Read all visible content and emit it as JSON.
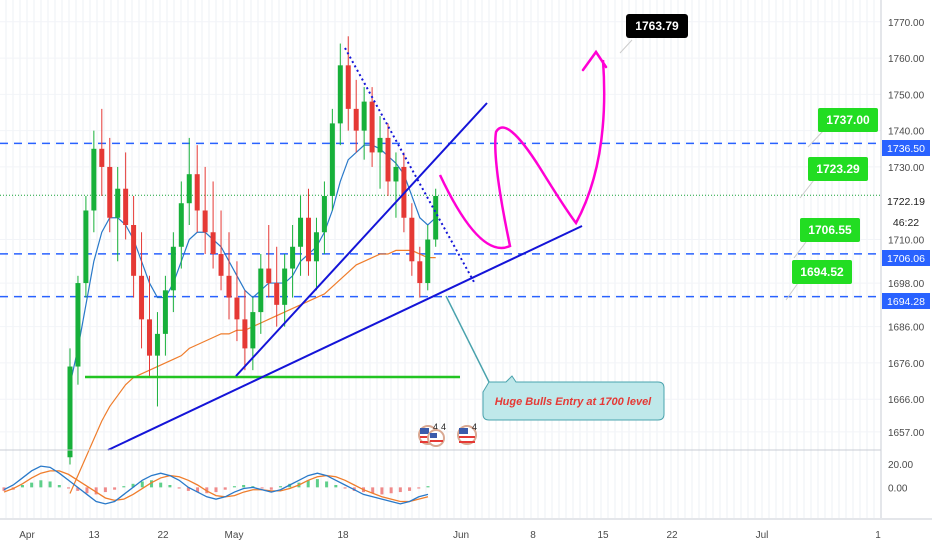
{
  "chart_data": {
    "type": "candlestick",
    "x_tick_labels": [
      "Apr",
      "13",
      "22",
      "May",
      "18",
      "Jun",
      "8",
      "15",
      "22",
      "Jul",
      "1"
    ],
    "y_ticks": [
      1657,
      1666,
      1676,
      1686,
      1698,
      1710,
      1730,
      1740,
      1750,
      1760,
      1770
    ],
    "y_tick_labels": [
      "1657.00",
      "1666.00",
      "1676.00",
      "1686.00",
      "1698.00",
      "1710.00",
      "1730.00",
      "1740.00",
      "1750.00",
      "1760.00",
      "1770.00"
    ],
    "ylim": [
      1652,
      1776
    ],
    "candles_ohlc": [
      [
        1650,
        1680,
        1648,
        1675
      ],
      [
        1675,
        1700,
        1670,
        1698
      ],
      [
        1698,
        1722,
        1694,
        1718
      ],
      [
        1718,
        1740,
        1712,
        1735
      ],
      [
        1735,
        1746,
        1722,
        1730
      ],
      [
        1730,
        1738,
        1712,
        1716
      ],
      [
        1716,
        1730,
        1704,
        1724
      ],
      [
        1724,
        1734,
        1710,
        1714
      ],
      [
        1714,
        1722,
        1694,
        1700
      ],
      [
        1700,
        1712,
        1680,
        1688
      ],
      [
        1688,
        1700,
        1672,
        1678
      ],
      [
        1678,
        1690,
        1664,
        1684
      ],
      [
        1684,
        1700,
        1678,
        1696
      ],
      [
        1696,
        1712,
        1690,
        1708
      ],
      [
        1708,
        1726,
        1702,
        1720
      ],
      [
        1720,
        1738,
        1714,
        1728
      ],
      [
        1728,
        1736,
        1712,
        1718
      ],
      [
        1718,
        1730,
        1706,
        1712
      ],
      [
        1712,
        1726,
        1702,
        1706
      ],
      [
        1706,
        1718,
        1696,
        1700
      ],
      [
        1700,
        1712,
        1688,
        1694
      ],
      [
        1694,
        1704,
        1682,
        1688
      ],
      [
        1688,
        1696,
        1674,
        1680
      ],
      [
        1680,
        1694,
        1674,
        1690
      ],
      [
        1690,
        1706,
        1684,
        1702
      ],
      [
        1702,
        1714,
        1694,
        1698
      ],
      [
        1698,
        1708,
        1686,
        1692
      ],
      [
        1692,
        1706,
        1686,
        1702
      ],
      [
        1702,
        1714,
        1694,
        1708
      ],
      [
        1708,
        1722,
        1700,
        1716
      ],
      [
        1716,
        1724,
        1700,
        1704
      ],
      [
        1704,
        1716,
        1696,
        1712
      ],
      [
        1712,
        1726,
        1706,
        1722
      ],
      [
        1722,
        1746,
        1718,
        1742
      ],
      [
        1742,
        1764,
        1736,
        1758
      ],
      [
        1758,
        1766,
        1740,
        1746
      ],
      [
        1746,
        1754,
        1734,
        1740
      ],
      [
        1740,
        1752,
        1732,
        1748
      ],
      [
        1748,
        1752,
        1730,
        1734
      ],
      [
        1734,
        1744,
        1724,
        1738
      ],
      [
        1738,
        1742,
        1722,
        1726
      ],
      [
        1726,
        1734,
        1716,
        1730
      ],
      [
        1730,
        1734,
        1712,
        1716
      ],
      [
        1716,
        1720,
        1700,
        1704
      ],
      [
        1704,
        1708,
        1694,
        1698
      ],
      [
        1698,
        1714,
        1696,
        1710
      ],
      [
        1710,
        1724,
        1708,
        1722
      ]
    ],
    "moving_average_1": [
      1670,
      1680,
      1692,
      1704,
      1712,
      1716,
      1716,
      1714,
      1710,
      1704,
      1698,
      1694,
      1694,
      1698,
      1704,
      1710,
      1712,
      1712,
      1710,
      1708,
      1704,
      1700,
      1696,
      1694,
      1696,
      1698,
      1698,
      1698,
      1700,
      1704,
      1706,
      1708,
      1712,
      1718,
      1726,
      1732,
      1734,
      1736,
      1736,
      1735,
      1733,
      1731,
      1728,
      1722,
      1716,
      1714,
      1716
    ],
    "moving_average_2": [
      1640,
      1645,
      1650,
      1655,
      1660,
      1664,
      1667,
      1670,
      1672,
      1673,
      1674,
      1675,
      1676,
      1677,
      1678,
      1680,
      1681,
      1682,
      1683,
      1684,
      1684,
      1685,
      1685,
      1686,
      1687,
      1688,
      1689,
      1690,
      1691,
      1692,
      1693,
      1694,
      1695,
      1697,
      1699,
      1701,
      1703,
      1704,
      1705,
      1706,
      1706,
      1707,
      1707,
      1707,
      1706,
      1705,
      1705
    ],
    "price_lines": [
      {
        "value": 1736.5,
        "label": "1736.50"
      },
      {
        "value": 1706.06,
        "label": "1706.06"
      },
      {
        "value": 1694.28,
        "label": "1694.28"
      }
    ],
    "current_price": {
      "value": 1722.19,
      "label": "1722.19",
      "countdown": "46:22"
    },
    "target_labels": [
      {
        "value": 1737.0,
        "label": "1737.00"
      },
      {
        "value": 1723.29,
        "label": "1723.29"
      },
      {
        "value": 1706.55,
        "label": "1706.55"
      },
      {
        "value": 1694.52,
        "label": "1694.52"
      }
    ],
    "peak_target": {
      "value": 1763.79,
      "label": "1763.79"
    },
    "support_level": 1673,
    "annotation": "Huge Bulls Entry at 1700 level",
    "event_markers": [
      {
        "count": "4"
      },
      {
        "count": "4"
      },
      {
        "count": "4"
      }
    ],
    "oscillator": {
      "y_tick_labels": [
        "20.00",
        "0.00"
      ],
      "ylim": [
        -26,
        30
      ],
      "histogram": [
        -3,
        -2,
        2,
        4,
        6,
        5,
        2,
        -1,
        -3,
        -5,
        -6,
        -4,
        -2,
        1,
        3,
        5,
        6,
        4,
        2,
        -1,
        -3,
        -4,
        -5,
        -4,
        -2,
        1,
        2,
        1,
        -1,
        -2,
        1,
        3,
        4,
        6,
        7,
        5,
        2,
        -1,
        -3,
        -4,
        -5,
        -6,
        -5,
        -4,
        -3,
        -1,
        1
      ],
      "macd": [
        -2,
        2,
        8,
        14,
        18,
        17,
        12,
        6,
        0,
        -6,
        -12,
        -14,
        -12,
        -6,
        0,
        6,
        10,
        12,
        10,
        6,
        0,
        -4,
        -8,
        -10,
        -8,
        -4,
        -1,
        0,
        -2,
        -4,
        -2,
        2,
        6,
        10,
        12,
        10,
        6,
        2,
        -2,
        -6,
        -8,
        -10,
        -12,
        -14,
        -12,
        -8,
        -6
      ],
      "signal": [
        -4,
        -1,
        3,
        8,
        12,
        14,
        14,
        11,
        6,
        1,
        -4,
        -9,
        -11,
        -10,
        -6,
        -1,
        4,
        8,
        10,
        9,
        6,
        2,
        -3,
        -7,
        -8,
        -7,
        -4,
        -2,
        -2,
        -3,
        -3,
        -1,
        2,
        6,
        9,
        10,
        9,
        6,
        2,
        -2,
        -5,
        -8,
        -10,
        -12,
        -12,
        -10,
        -8
      ]
    }
  },
  "colors": {
    "candle_up": "#26a69a",
    "candle_down": "#ef5350",
    "up_bar": "#17b03a",
    "down_bar": "#e53935",
    "trendline": "#1414d8",
    "price_line": "#2962ff",
    "ma1": "#2979c9",
    "ma2": "#ef7d2c",
    "pink": "#ff00d4",
    "support": "#22c422",
    "label_green": "#22dd22",
    "annotation_bg": "#bfe8ea",
    "annotation_text": "#e53935",
    "current_price": "#1aa33a"
  }
}
